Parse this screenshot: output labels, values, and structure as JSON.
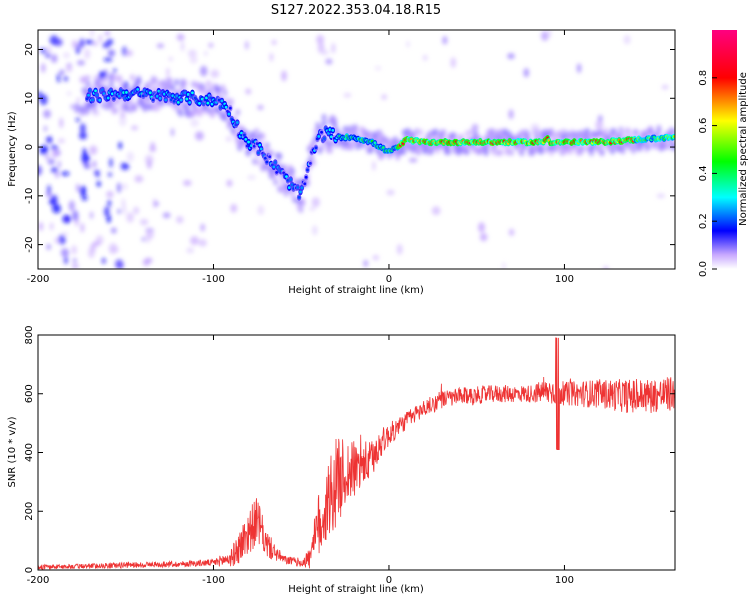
{
  "figure_title": "S127.2022.353.04.18.R15",
  "chart_data": [
    {
      "type": "heatmap",
      "xlabel": "Height of straight line (km)",
      "ylabel": "Frequency (Hz)",
      "xlim": [
        -200,
        163
      ],
      "ylim": [
        -25,
        24
      ],
      "x_ticks": [
        -200,
        -100,
        0,
        100
      ],
      "y_ticks": [
        -20,
        -10,
        0,
        10,
        20
      ],
      "colorbar": {
        "label": "Normalized spectral amplitude",
        "range": [
          0,
          1
        ],
        "ticks": [
          "0.0",
          "0.2",
          "0.4",
          "0.6",
          "0.8"
        ],
        "colors": [
          "#ffffff",
          "#6a00ff",
          "#0000ff",
          "#00ffff",
          "#00ff00",
          "#ffff00",
          "#ff0000",
          "#ff0080"
        ]
      },
      "ridge": {
        "x": [
          -170,
          -150,
          -130,
          -110,
          -100,
          -95,
          -90,
          -85,
          -80,
          -75,
          -70,
          -65,
          -60,
          -55,
          -50,
          -45,
          -40,
          -35,
          -30,
          -25,
          -20,
          -15,
          -10,
          -5,
          0,
          5,
          10,
          20,
          40,
          60,
          80,
          88,
          90,
          92,
          100,
          120,
          140,
          163
        ],
        "frequency": [
          10.5,
          11,
          10.5,
          10,
          9.5,
          9,
          7,
          3,
          1,
          0,
          -2,
          -4,
          -6,
          -8,
          -10,
          -3,
          2,
          3,
          2,
          2,
          2,
          1.5,
          1,
          0,
          -1,
          0,
          1.5,
          1,
          1,
          1,
          1,
          1,
          2,
          1,
          1,
          1,
          1.5,
          2
        ]
      }
    },
    {
      "type": "line",
      "xlabel": "Height of straight line (km)",
      "ylabel": "SNR (10 * v/v)",
      "xlim": [
        -200,
        163
      ],
      "ylim": [
        0,
        800
      ],
      "x_ticks": [
        -200,
        -100,
        0,
        100
      ],
      "y_ticks": [
        0,
        200,
        400,
        600,
        800
      ],
      "color": "#ee3333",
      "x": [
        -200,
        -180,
        -160,
        -140,
        -120,
        -100,
        -90,
        -85,
        -80,
        -75,
        -70,
        -65,
        -60,
        -55,
        -50,
        -45,
        -40,
        -35,
        -30,
        -25,
        -20,
        -15,
        -10,
        -5,
        0,
        10,
        20,
        30,
        40,
        60,
        80,
        95,
        100,
        120,
        140,
        163
      ],
      "y": [
        10,
        12,
        15,
        18,
        20,
        25,
        40,
        80,
        130,
        170,
        90,
        60,
        35,
        30,
        25,
        40,
        150,
        230,
        300,
        330,
        340,
        360,
        370,
        430,
        460,
        510,
        550,
        580,
        590,
        600,
        600,
        610,
        600,
        600,
        590,
        600
      ],
      "noise_amplitude": [
        8,
        8,
        10,
        10,
        10,
        12,
        30,
        60,
        80,
        80,
        50,
        30,
        15,
        15,
        15,
        40,
        120,
        150,
        150,
        120,
        100,
        80,
        70,
        50,
        40,
        30,
        30,
        30,
        30,
        30,
        30,
        50,
        40,
        50,
        60,
        60
      ]
    }
  ]
}
